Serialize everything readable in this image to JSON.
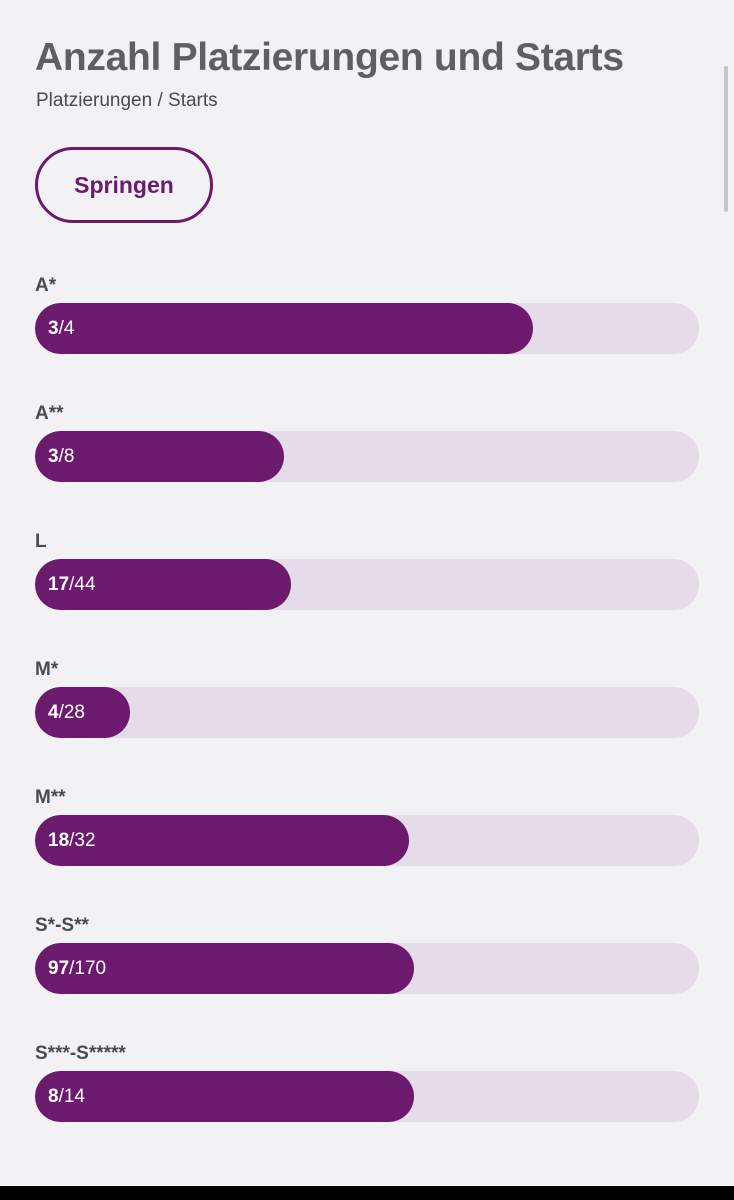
{
  "header": {
    "title": "Anzahl Platzierungen und Starts",
    "subtitle": "Platzierungen / Starts"
  },
  "filter": {
    "selected_label": "Springen"
  },
  "colors": {
    "accent": "#6b1a6e",
    "track": "#e6dbe8",
    "background": "#f2f1f3"
  },
  "rows": [
    {
      "label": "A*",
      "placements": "3",
      "starts": "4",
      "fraction": 0.75
    },
    {
      "label": "A**",
      "placements": "3",
      "starts": "8",
      "fraction": 0.375
    },
    {
      "label": "L",
      "placements": "17",
      "starts": "44",
      "fraction": 0.386
    },
    {
      "label": "M*",
      "placements": "4",
      "starts": "28",
      "fraction": 0.143
    },
    {
      "label": "M**",
      "placements": "18",
      "starts": "32",
      "fraction": 0.5625
    },
    {
      "label": "S*-S**",
      "placements": "97",
      "starts": "170",
      "fraction": 0.571
    },
    {
      "label": "S***-S*****",
      "placements": "8",
      "starts": "14",
      "fraction": 0.571
    }
  ]
}
